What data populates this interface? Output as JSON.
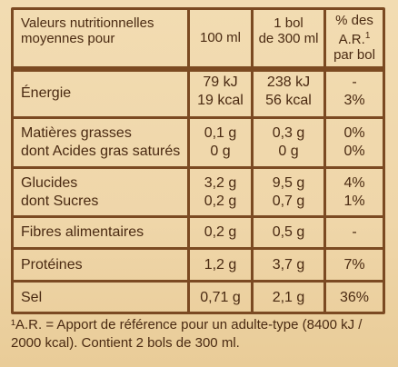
{
  "header": {
    "col1_line1": "Valeurs nutritionnelles",
    "col1_line2": "moyennes pour",
    "col2": "100 ml",
    "col3_line1": "1 bol",
    "col3_line2": "de 300 ml",
    "col4_line1": "% des",
    "col4_line2": "A.R.",
    "col4_sup": "1",
    "col4_line3": "par bol"
  },
  "rows": [
    {
      "label1": "Énergie",
      "label2": "",
      "v100_1": "79 kJ",
      "v100_2": "19 kcal",
      "vbol_1": "238 kJ",
      "vbol_2": "56 kcal",
      "ar_1": "-",
      "ar_2": "3%"
    },
    {
      "label1": "Matières grasses",
      "label2": "dont Acides gras saturés",
      "v100_1": "0,1 g",
      "v100_2": "0 g",
      "vbol_1": "0,3 g",
      "vbol_2": "0 g",
      "ar_1": "0%",
      "ar_2": "0%"
    },
    {
      "label1": "Glucides",
      "label2": "dont Sucres",
      "v100_1": "3,2 g",
      "v100_2": "0,2 g",
      "vbol_1": "9,5 g",
      "vbol_2": "0,7 g",
      "ar_1": "4%",
      "ar_2": "1%"
    },
    {
      "label1": "Fibres alimentaires",
      "v100_1": "0,2 g",
      "vbol_1": "0,5 g",
      "ar_1": "-"
    },
    {
      "label1": "Protéines",
      "v100_1": "1,2 g",
      "vbol_1": "3,7 g",
      "ar_1": "7%"
    },
    {
      "label1": "Sel",
      "v100_1": "0,71 g",
      "vbol_1": "2,1 g",
      "ar_1": "36%"
    }
  ],
  "footnote": {
    "line1": "¹A.R. = Apport de référence pour un adulte-type (8400 kJ /",
    "line2": "2000 kcal). Contient 2 bols de 300 ml."
  },
  "colors": {
    "background": "#efd6a9",
    "rule": "#7b4a22",
    "text": "#4a2a12"
  }
}
